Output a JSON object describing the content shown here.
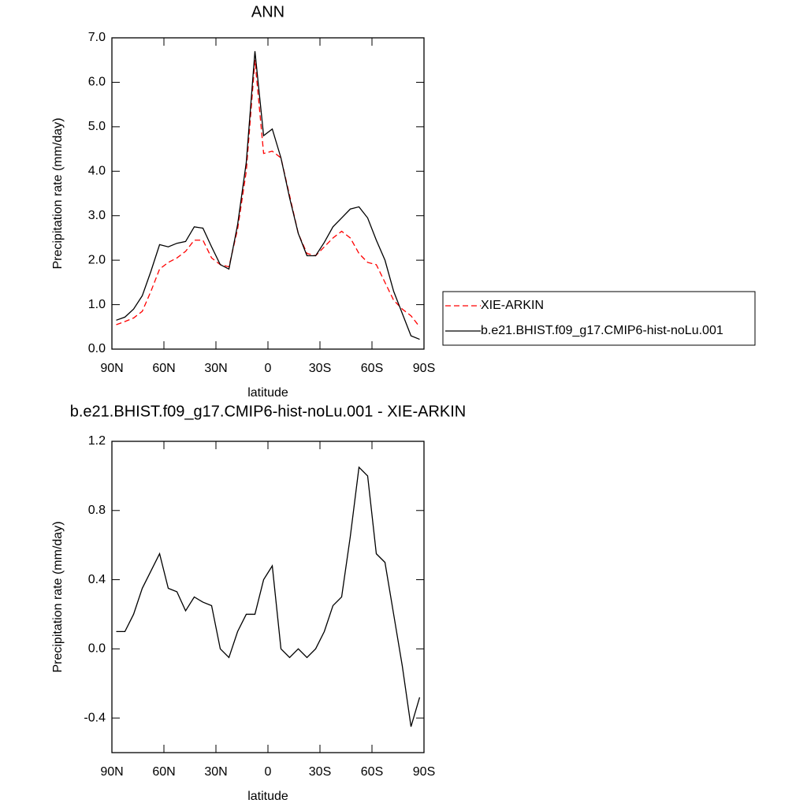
{
  "chart_data": [
    {
      "type": "line",
      "title": "ANN",
      "xlabel": "latitude",
      "ylabel": "Precipitation rate (mm/day)",
      "x": [
        87.5,
        82.5,
        77.5,
        72.5,
        67.5,
        62.5,
        57.5,
        52.5,
        47.5,
        42.5,
        37.5,
        32.5,
        27.5,
        22.5,
        17.5,
        12.5,
        7.5,
        2.5,
        -2.5,
        -7.5,
        -12.5,
        -17.5,
        -22.5,
        -27.5,
        -32.5,
        -37.5,
        -42.5,
        -47.5,
        -52.5,
        -57.5,
        -62.5,
        -67.5,
        -72.5,
        -77.5,
        -82.5,
        -87.5
      ],
      "series": [
        {
          "name": "XIE-ARKIN",
          "color": "#ff0000",
          "style": "dashed",
          "values": [
            0.55,
            0.62,
            0.7,
            0.85,
            1.3,
            1.8,
            1.95,
            2.05,
            2.2,
            2.45,
            2.45,
            2.05,
            1.9,
            1.85,
            2.7,
            4.0,
            6.5,
            4.4,
            4.45,
            4.3,
            3.45,
            2.6,
            2.15,
            2.1,
            2.3,
            2.5,
            2.65,
            2.5,
            2.15,
            1.95,
            1.9,
            1.5,
            1.1,
            0.9,
            0.75,
            0.5
          ]
        },
        {
          "name": "b.e21.BHIST.f09_g17.CMIP6-hist-noLu.001",
          "color": "#000000",
          "style": "solid",
          "values": [
            0.65,
            0.72,
            0.9,
            1.2,
            1.75,
            2.35,
            2.3,
            2.38,
            2.42,
            2.75,
            2.72,
            2.3,
            1.9,
            1.8,
            2.8,
            4.2,
            6.7,
            4.8,
            4.95,
            4.3,
            3.4,
            2.6,
            2.1,
            2.1,
            2.4,
            2.75,
            2.95,
            3.15,
            3.2,
            2.95,
            2.45,
            2.0,
            1.3,
            0.8,
            0.3,
            0.22
          ]
        }
      ],
      "xlim": [
        90,
        -90
      ],
      "xticks": [
        {
          "value": 90,
          "label": "90N"
        },
        {
          "value": 60,
          "label": "60N"
        },
        {
          "value": 30,
          "label": "30N"
        },
        0,
        {
          "value": -30,
          "label": "30S"
        },
        {
          "value": -60,
          "label": "60S"
        },
        {
          "value": -90,
          "label": "90S"
        }
      ],
      "ylim": [
        0,
        7
      ],
      "yticks": [
        {
          "value": 0,
          "label": "0.0"
        },
        {
          "value": 1,
          "label": "1.0"
        },
        {
          "value": 2,
          "label": "2.0"
        },
        {
          "value": 3,
          "label": "3.0"
        },
        {
          "value": 4,
          "label": "4.0"
        },
        {
          "value": 5,
          "label": "5.0"
        },
        {
          "value": 6,
          "label": "6.0"
        },
        {
          "value": 7,
          "label": "7.0"
        }
      ],
      "legend": "right"
    },
    {
      "type": "line",
      "title": "b.e21.BHIST.f09_g17.CMIP6-hist-noLu.001 - XIE-ARKIN",
      "xlabel": "latitude",
      "ylabel": "Precipitation rate (mm/day)",
      "x": [
        87.5,
        82.5,
        77.5,
        72.5,
        67.5,
        62.5,
        57.5,
        52.5,
        47.5,
        42.5,
        37.5,
        32.5,
        27.5,
        22.5,
        17.5,
        12.5,
        7.5,
        2.5,
        -2.5,
        -7.5,
        -12.5,
        -17.5,
        -22.5,
        -27.5,
        -32.5,
        -37.5,
        -42.5,
        -47.5,
        -52.5,
        -57.5,
        -62.5,
        -67.5,
        -72.5,
        -77.5,
        -82.5,
        -87.5
      ],
      "series": [
        {
          "color": "#000000",
          "style": "solid",
          "values": [
            0.1,
            0.1,
            0.2,
            0.35,
            0.45,
            0.55,
            0.35,
            0.33,
            0.22,
            0.3,
            0.27,
            0.25,
            0.0,
            -0.05,
            0.1,
            0.2,
            0.2,
            0.4,
            0.48,
            0.0,
            -0.05,
            0.0,
            -0.05,
            0.0,
            0.1,
            0.25,
            0.3,
            0.65,
            1.05,
            1.0,
            0.55,
            0.5,
            0.2,
            -0.1,
            -0.45,
            -0.28
          ]
        }
      ],
      "xlim": [
        90,
        -90
      ],
      "xticks": [
        {
          "value": 90,
          "label": "90N"
        },
        {
          "value": 60,
          "label": "60N"
        },
        {
          "value": 30,
          "label": "30N"
        },
        0,
        {
          "value": -30,
          "label": "30S"
        },
        {
          "value": -60,
          "label": "60S"
        },
        {
          "value": -90,
          "label": "90S"
        }
      ],
      "ylim": [
        -0.6,
        1.2
      ],
      "yticks": [
        -0.4,
        {
          "value": 0,
          "label": "0.0"
        },
        0.4,
        0.8,
        1.2
      ]
    }
  ]
}
